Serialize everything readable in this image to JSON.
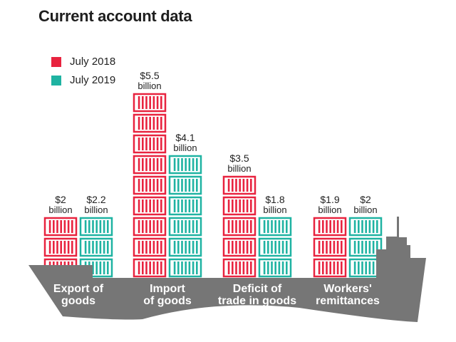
{
  "chart_data": {
    "type": "bar",
    "title": "Current account data",
    "xlabel": "",
    "ylabel": "",
    "unit": "billion USD",
    "categories": [
      [
        "Export of",
        "goods"
      ],
      [
        "Import",
        "of goods"
      ],
      [
        "Deficit of",
        "trade in goods"
      ],
      [
        "Workers'",
        "remittances"
      ]
    ],
    "series": [
      {
        "name": "July 2018",
        "color": "#e8233f",
        "values": [
          2,
          5.5,
          3.5,
          1.9
        ],
        "labels": [
          "$2",
          "$5.5",
          "$3.5",
          "$1.9"
        ]
      },
      {
        "name": "July 2019",
        "color": "#1fb3a2",
        "values": [
          2.2,
          4.1,
          1.8,
          2
        ],
        "labels": [
          "$2.2",
          "$4.1",
          "$1.8",
          "$2"
        ]
      }
    ],
    "value_suffix": "billion",
    "legend_position": "top-left",
    "grid": false
  },
  "colors": {
    "ship": "#767676"
  }
}
